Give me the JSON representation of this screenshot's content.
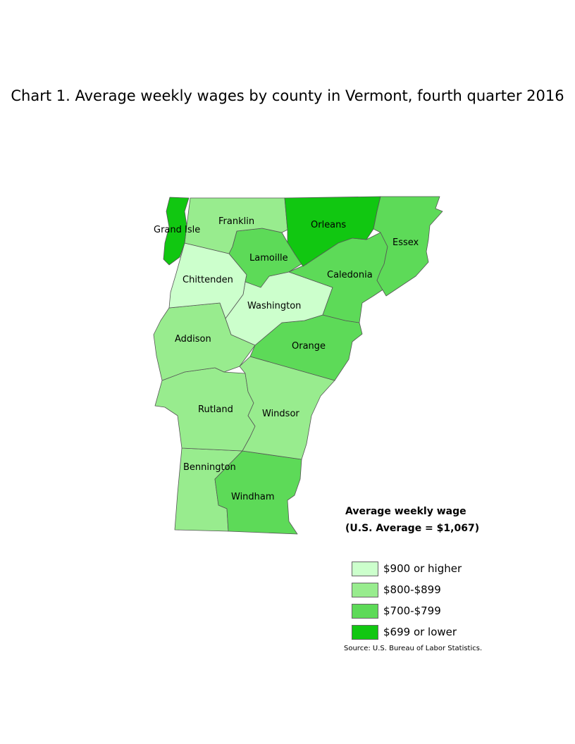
{
  "title": "Chart 1. Average weekly wages by county in Vermont, fourth quarter 2016",
  "legend": {
    "title_line1": "Average weekly wage",
    "title_line2": "(U.S. Average = $1,067)",
    "items": [
      {
        "label": "$900 or higher",
        "color": "#ccffcc"
      },
      {
        "label": "$800-$899",
        "color": "#98ec8e"
      },
      {
        "label": "$700-$799",
        "color": "#5dda58"
      },
      {
        "label": "$699 or lower",
        "color": "#11c711"
      }
    ]
  },
  "source": "Source: U.S. Bureau of Labor Statistics.",
  "counties": [
    {
      "name": "Grand Isle",
      "wage_class": "$699 or lower"
    },
    {
      "name": "Franklin",
      "wage_class": "$800-$899"
    },
    {
      "name": "Orleans",
      "wage_class": "$699 or lower"
    },
    {
      "name": "Essex",
      "wage_class": "$700-$799"
    },
    {
      "name": "Lamoille",
      "wage_class": "$700-$799"
    },
    {
      "name": "Chittenden",
      "wage_class": "$900 or higher"
    },
    {
      "name": "Caledonia",
      "wage_class": "$700-$799"
    },
    {
      "name": "Washington",
      "wage_class": "$900 or higher"
    },
    {
      "name": "Addison",
      "wage_class": "$800-$899"
    },
    {
      "name": "Orange",
      "wage_class": "$700-$799"
    },
    {
      "name": "Rutland",
      "wage_class": "$800-$899"
    },
    {
      "name": "Windsor",
      "wage_class": "$800-$899"
    },
    {
      "name": "Bennington",
      "wage_class": "$800-$899"
    },
    {
      "name": "Windham",
      "wage_class": "$700-$799"
    }
  ]
}
